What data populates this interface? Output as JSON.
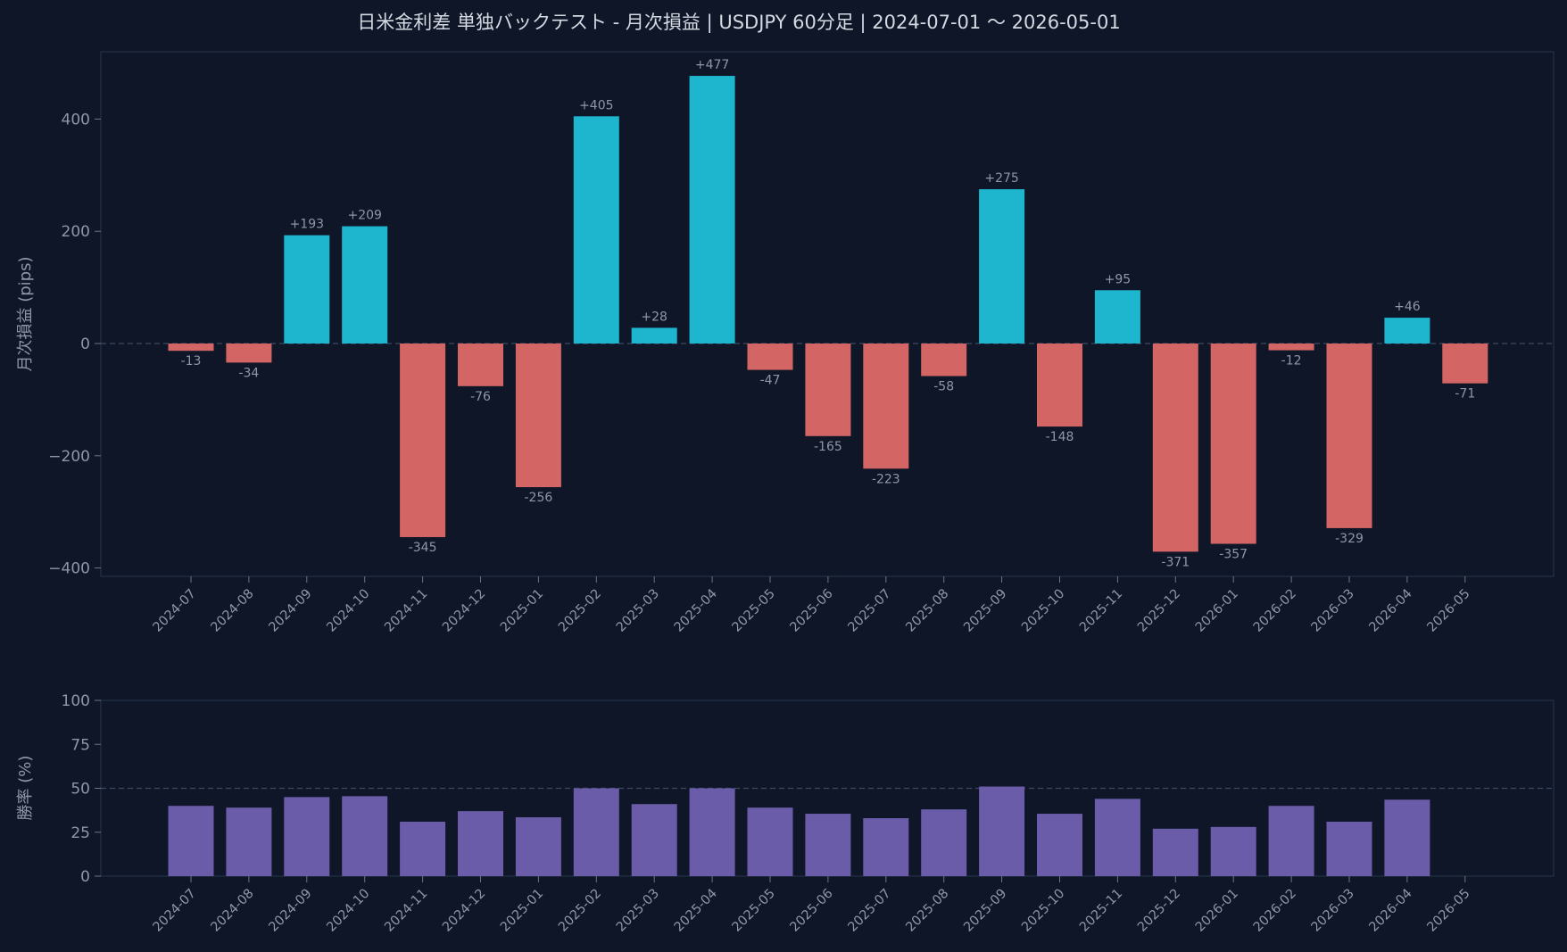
{
  "title": "日米金利差 単独バックテスト - 月次損益 | USDJPY 60分足 | 2024-07-01 〜 2026-05-01",
  "colors": {
    "background": "#0e1628",
    "positive": "#1eb6cf",
    "negative": "#d46565",
    "winrate": "#6a5ca8"
  },
  "chart_data": [
    {
      "type": "bar",
      "ylabel": "月次損益 (pips)",
      "ylim": [
        -415,
        520
      ],
      "yticks": [
        -400,
        -200,
        0,
        200,
        400
      ],
      "ytick_labels": [
        "−400",
        "−200",
        "0",
        "200",
        "400"
      ],
      "reference_line": 0,
      "categories": [
        "2024-07",
        "2024-08",
        "2024-09",
        "2024-10",
        "2024-11",
        "2024-12",
        "2025-01",
        "2025-02",
        "2025-03",
        "2025-04",
        "2025-05",
        "2025-06",
        "2025-07",
        "2025-08",
        "2025-09",
        "2025-10",
        "2025-11",
        "2025-12",
        "2026-01",
        "2026-02",
        "2026-03",
        "2026-04",
        "2026-05"
      ],
      "values": [
        -13,
        -34,
        193,
        209,
        -345,
        -76,
        -256,
        405,
        28,
        477,
        -47,
        -165,
        -223,
        -58,
        275,
        -148,
        95,
        -371,
        -357,
        -12,
        -329,
        46,
        -71
      ],
      "data_labels": [
        "-13",
        "-34",
        "+193",
        "+209",
        "-345",
        "-76",
        "-256",
        "+405",
        "+28",
        "+477",
        "-47",
        "-165",
        "-223",
        "-58",
        "+275",
        "-148",
        "+95",
        "-371",
        "-357",
        "-12",
        "-329",
        "+46",
        "-71"
      ]
    },
    {
      "type": "bar",
      "ylabel": "勝率 (%)",
      "ylim": [
        0,
        100
      ],
      "yticks": [
        0,
        25,
        50,
        75,
        100
      ],
      "ytick_labels": [
        "0",
        "25",
        "50",
        "75",
        "100"
      ],
      "reference_line": 50,
      "categories": [
        "2024-07",
        "2024-08",
        "2024-09",
        "2024-10",
        "2024-11",
        "2024-12",
        "2025-01",
        "2025-02",
        "2025-03",
        "2025-04",
        "2025-05",
        "2025-06",
        "2025-07",
        "2025-08",
        "2025-09",
        "2025-10",
        "2025-11",
        "2025-12",
        "2026-01",
        "2026-02",
        "2026-03",
        "2026-04",
        "2026-05"
      ],
      "values": [
        40,
        39,
        45,
        45.5,
        31,
        37,
        33.5,
        50,
        41,
        50,
        39,
        35.5,
        33,
        38,
        51,
        35.5,
        44,
        27,
        28,
        40,
        31,
        43.5,
        0
      ]
    }
  ]
}
